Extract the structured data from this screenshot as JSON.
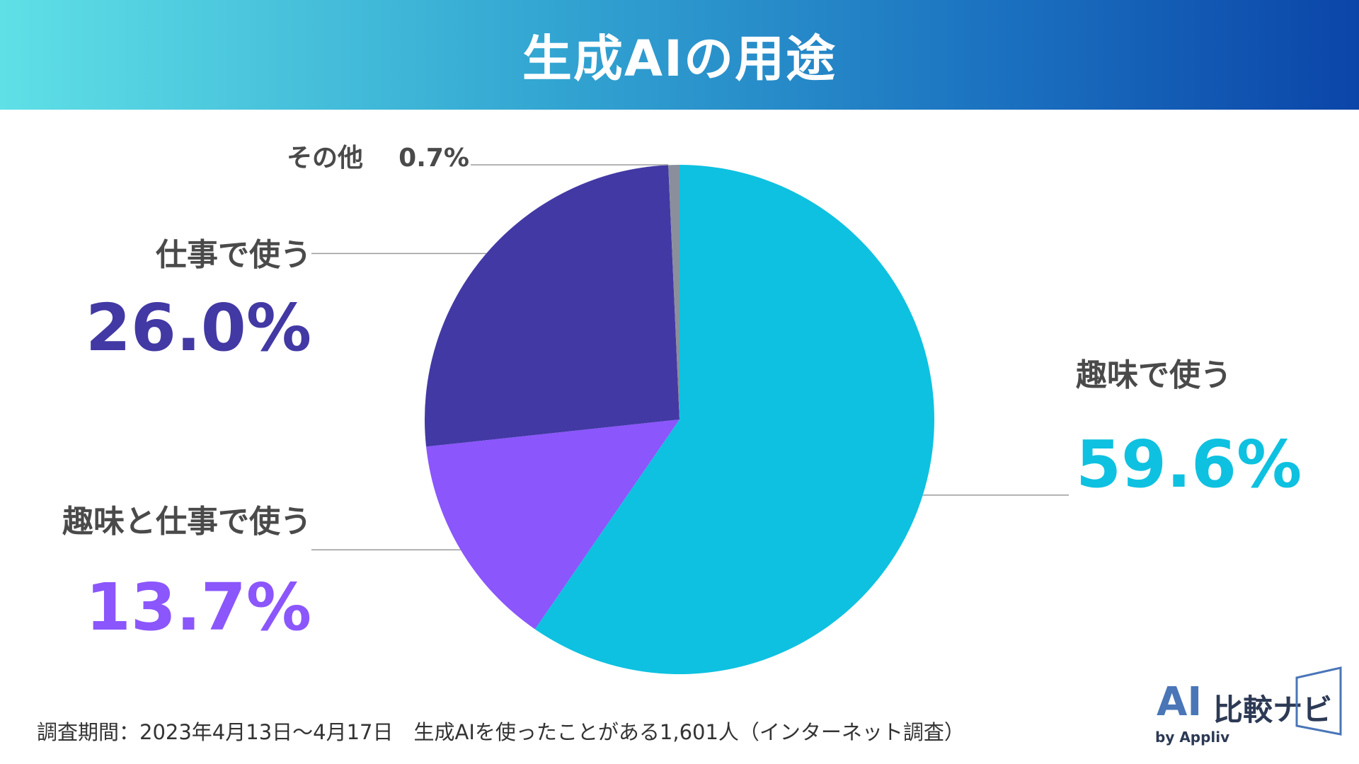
{
  "header": {
    "title": "生成AIの用途"
  },
  "chart_data": {
    "type": "pie",
    "title": "生成AIの用途",
    "start_angle_deg": 0,
    "direction": "clockwise",
    "slices": [
      {
        "name": "趣味で使う",
        "value": 59.6,
        "label": "59.6%",
        "color": "#0ec1e0"
      },
      {
        "name": "趣味と仕事で使う",
        "value": 13.7,
        "label": "13.7%",
        "color": "#8b56fc"
      },
      {
        "name": "仕事で使う",
        "value": 26.0,
        "label": "26.0%",
        "color": "#4239a4"
      },
      {
        "name": "その他",
        "value": 0.7,
        "label": "0.7%",
        "color": "#8a8f9c"
      }
    ]
  },
  "footer": {
    "note": "調査期間：2023年4月13日〜4月17日　生成AIを使ったことがある1,601人（インターネット調査）"
  },
  "logo": {
    "mark": "AI",
    "name": "比較ナビ",
    "by": "by Appliv"
  }
}
